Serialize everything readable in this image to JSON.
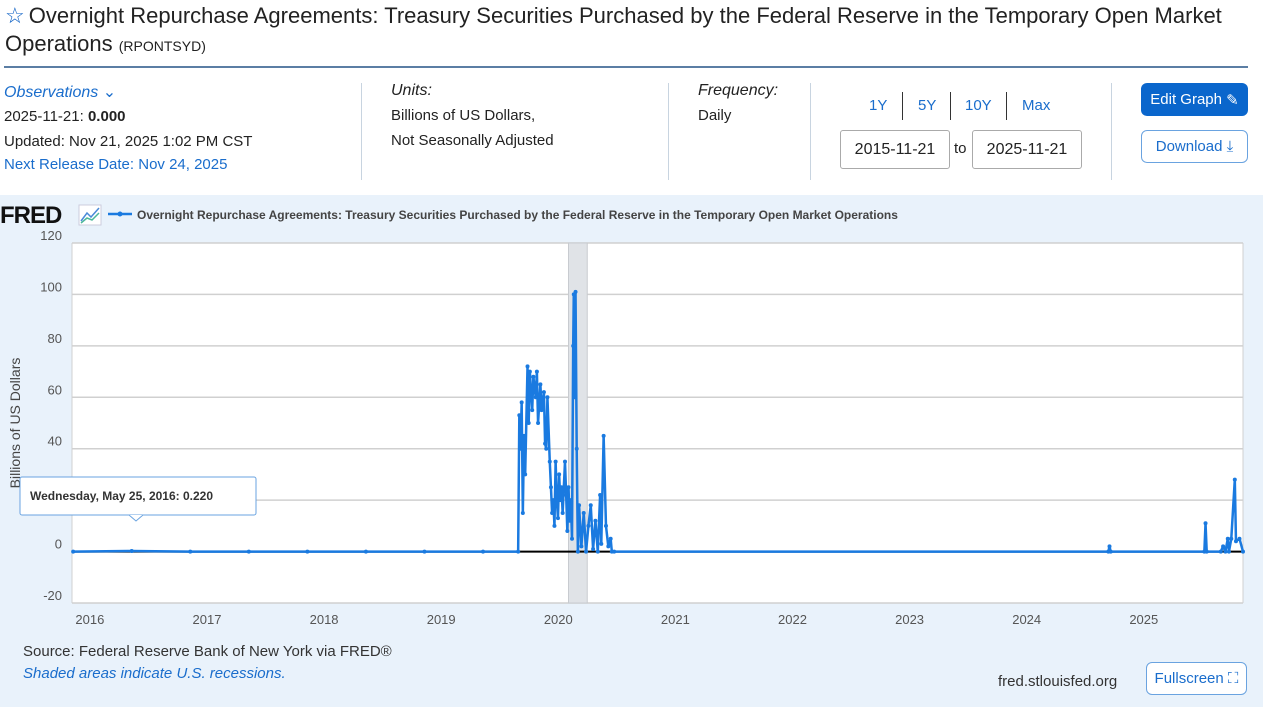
{
  "header": {
    "title": "Overnight Repurchase Agreements: Treasury Securities Purchased by the Federal Reserve in the Temporary Open Market Operations",
    "series_id": "(RPONTSYD)"
  },
  "info": {
    "observations_label": "Observations",
    "obs_date": "2025-11-21:",
    "obs_value": "0.000",
    "updated": "Updated: Nov 21, 2025 1:02 PM CST",
    "next_release": "Next Release Date: Nov 24, 2025",
    "units_label": "Units:",
    "units_line1": "Billions of US Dollars,",
    "units_line2": "Not Seasonally Adjusted",
    "frequency_label": "Frequency:",
    "frequency": "Daily"
  },
  "controls": {
    "ranges": [
      "1Y",
      "5Y",
      "10Y",
      "Max"
    ],
    "start_date": "2015-11-21",
    "to": "to",
    "end_date": "2025-11-21",
    "edit_graph": "Edit Graph",
    "download": "Download"
  },
  "footer": {
    "source": "Source: Federal Reserve Bank of New York via FRED®",
    "recession_note": "Shaded areas indicate U.S. recessions.",
    "site": "fred.stlouisfed.org",
    "fullscreen": "Fullscreen"
  },
  "colors": {
    "series": "#1a7ae0",
    "accent": "#0a5fc4",
    "recession": "#e0e3e7"
  },
  "chart_data": {
    "type": "line",
    "logo": "FRED",
    "legend": "Overnight Repurchase Agreements: Treasury Securities Purchased by the Federal Reserve in the Temporary Open Market Operations",
    "ylabel": "Billions of US Dollars",
    "ylim": [
      -20,
      120
    ],
    "yticks": [
      -20,
      0,
      20,
      40,
      60,
      80,
      100,
      120
    ],
    "ytick_labels": [
      "-20",
      "0",
      "",
      "40",
      "60",
      "80",
      "100",
      "120"
    ],
    "xlim": [
      2015.89,
      2025.89
    ],
    "xticks": [
      2016,
      2017,
      2018,
      2019,
      2020,
      2021,
      2022,
      2023,
      2024,
      2025
    ],
    "recessions": [
      [
        2020.13,
        2020.29
      ]
    ],
    "tooltip": {
      "label": "Wednesday, May 25, 2016:",
      "value": "0.220",
      "x": 2016.4,
      "y": 0.22
    },
    "points": [
      [
        2015.9,
        0
      ],
      [
        2016.4,
        0.22
      ],
      [
        2016.9,
        0
      ],
      [
        2017.4,
        0
      ],
      [
        2017.9,
        0
      ],
      [
        2018.4,
        0
      ],
      [
        2018.9,
        0
      ],
      [
        2019.4,
        0
      ],
      [
        2019.7,
        0
      ],
      [
        2019.71,
        53
      ],
      [
        2019.72,
        40
      ],
      [
        2019.73,
        58
      ],
      [
        2019.74,
        15
      ],
      [
        2019.75,
        45
      ],
      [
        2019.76,
        30
      ],
      [
        2019.78,
        72
      ],
      [
        2019.79,
        50
      ],
      [
        2019.8,
        70
      ],
      [
        2019.82,
        55
      ],
      [
        2019.83,
        68
      ],
      [
        2019.85,
        60
      ],
      [
        2019.86,
        70
      ],
      [
        2019.87,
        50
      ],
      [
        2019.89,
        65
      ],
      [
        2019.9,
        55
      ],
      [
        2019.92,
        62
      ],
      [
        2019.93,
        42
      ],
      [
        2019.94,
        40
      ],
      [
        2019.95,
        60
      ],
      [
        2019.97,
        35
      ],
      [
        2019.98,
        25
      ],
      [
        2019.99,
        15
      ],
      [
        2020.0,
        20
      ],
      [
        2020.01,
        10
      ],
      [
        2020.02,
        35
      ],
      [
        2020.03,
        20
      ],
      [
        2020.04,
        13
      ],
      [
        2020.05,
        30
      ],
      [
        2020.06,
        20
      ],
      [
        2020.07,
        25
      ],
      [
        2020.08,
        15
      ],
      [
        2020.1,
        35
      ],
      [
        2020.11,
        22
      ],
      [
        2020.12,
        8
      ],
      [
        2020.13,
        25
      ],
      [
        2020.14,
        12
      ],
      [
        2020.15,
        20
      ],
      [
        2020.16,
        5
      ],
      [
        2020.17,
        80
      ],
      [
        2020.175,
        100
      ],
      [
        2020.18,
        60
      ],
      [
        2020.19,
        101
      ],
      [
        2020.2,
        40
      ],
      [
        2020.21,
        0
      ],
      [
        2020.22,
        18
      ],
      [
        2020.24,
        2
      ],
      [
        2020.26,
        15
      ],
      [
        2020.28,
        0
      ],
      [
        2020.3,
        10
      ],
      [
        2020.32,
        18
      ],
      [
        2020.34,
        1
      ],
      [
        2020.36,
        12
      ],
      [
        2020.38,
        0
      ],
      [
        2020.4,
        22
      ],
      [
        2020.41,
        3
      ],
      [
        2020.43,
        45
      ],
      [
        2020.45,
        10
      ],
      [
        2020.47,
        2
      ],
      [
        2020.49,
        5
      ],
      [
        2020.5,
        0
      ],
      [
        2020.52,
        0
      ],
      [
        2024.74,
        0
      ],
      [
        2024.75,
        2
      ],
      [
        2024.76,
        0
      ],
      [
        2025.56,
        0
      ],
      [
        2025.57,
        11
      ],
      [
        2025.58,
        0
      ],
      [
        2025.7,
        0
      ],
      [
        2025.72,
        2
      ],
      [
        2025.74,
        0
      ],
      [
        2025.76,
        5
      ],
      [
        2025.77,
        0
      ],
      [
        2025.79,
        5
      ],
      [
        2025.82,
        28
      ],
      [
        2025.83,
        4
      ],
      [
        2025.86,
        5
      ],
      [
        2025.89,
        0
      ]
    ]
  }
}
